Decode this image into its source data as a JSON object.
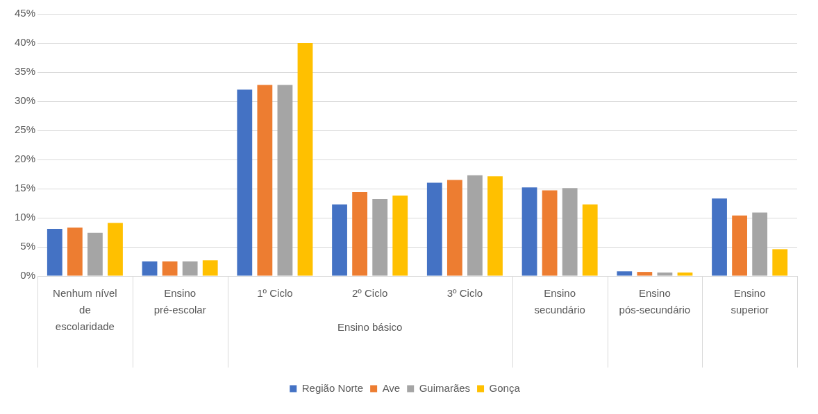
{
  "chart_data": {
    "type": "bar",
    "categories": [
      "Nenhum nível de escolaridade",
      "Ensino pré-escolar",
      "1º Ciclo",
      "2º Ciclo",
      "3º Ciclo",
      "Ensino secundário",
      "Ensino pós-secundário",
      "Ensino superior"
    ],
    "series": [
      {
        "name": "Região Norte",
        "color": "#4472c4",
        "values": [
          8.1,
          2.5,
          32.0,
          12.3,
          16.0,
          15.2,
          0.8,
          13.3
        ]
      },
      {
        "name": "Ave",
        "color": "#ed7d31",
        "values": [
          8.3,
          2.5,
          32.8,
          14.4,
          16.5,
          14.7,
          0.7,
          10.4
        ]
      },
      {
        "name": "Guimarães",
        "color": "#a5a5a5",
        "values": [
          7.4,
          2.5,
          32.8,
          13.2,
          17.3,
          15.1,
          0.6,
          10.9
        ]
      },
      {
        "name": "Gonça",
        "color": "#ffc000",
        "values": [
          9.1,
          2.7,
          40.0,
          13.8,
          17.1,
          12.3,
          0.6,
          4.6
        ]
      }
    ],
    "annotations": [
      "Ensino básico"
    ],
    "ylim": [
      0,
      45
    ],
    "yticks": [
      {
        "value": 0,
        "label": "0%"
      },
      {
        "value": 5,
        "label": "5%"
      },
      {
        "value": 10,
        "label": "10%"
      },
      {
        "value": 15,
        "label": "15%"
      },
      {
        "value": 20,
        "label": "20%"
      },
      {
        "value": 25,
        "label": "25%"
      },
      {
        "value": 30,
        "label": "30%"
      },
      {
        "value": 35,
        "label": "35%"
      },
      {
        "value": 40,
        "label": "40%"
      },
      {
        "value": 45,
        "label": "45%"
      }
    ],
    "grid": "y",
    "legend": "bottom"
  }
}
